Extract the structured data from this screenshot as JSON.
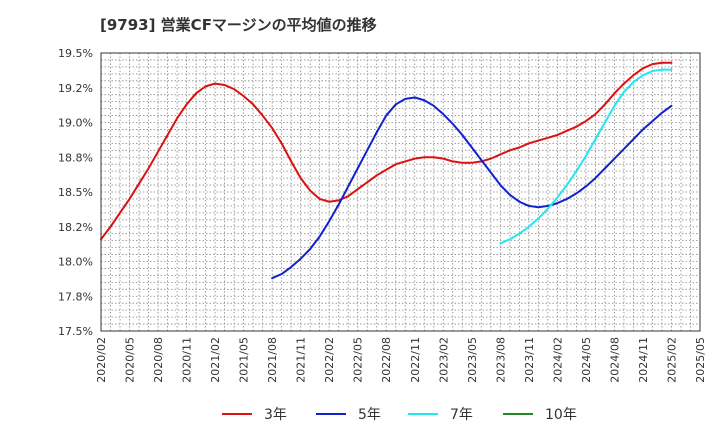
{
  "chart_data": {
    "type": "line",
    "title": "[9793]  営業CFマージンの平均値の推移",
    "xlabel": "",
    "ylabel": "",
    "x_ticks": [
      "2020/02",
      "2020/05",
      "2020/08",
      "2020/11",
      "2021/02",
      "2021/05",
      "2021/08",
      "2021/11",
      "2022/02",
      "2022/05",
      "2022/08",
      "2022/11",
      "2023/02",
      "2023/05",
      "2023/08",
      "2023/11",
      "2024/02",
      "2024/05",
      "2024/08",
      "2024/11",
      "2025/02",
      "2025/05"
    ],
    "x_range": [
      "2020/02",
      "2025/05"
    ],
    "ylim": [
      17.5,
      19.5
    ],
    "y_ticks": [
      17.5,
      17.75,
      18.0,
      18.25,
      18.5,
      18.75,
      19.0,
      19.25,
      19.5
    ],
    "y_tick_labels": [
      "17.5%",
      "17.8%",
      "18.0%",
      "18.2%",
      "18.5%",
      "18.8%",
      "19.0%",
      "19.2%",
      "19.5%"
    ],
    "grid": true,
    "legend": "bottom",
    "series": [
      {
        "name": "3年",
        "color": "#dd1111",
        "points": [
          [
            "2020/02",
            18.16
          ],
          [
            "2020/03",
            18.25
          ],
          [
            "2020/04",
            18.35
          ],
          [
            "2020/05",
            18.45
          ],
          [
            "2020/06",
            18.56
          ],
          [
            "2020/07",
            18.67
          ],
          [
            "2020/08",
            18.79
          ],
          [
            "2020/09",
            18.91
          ],
          [
            "2020/10",
            19.03
          ],
          [
            "2020/11",
            19.13
          ],
          [
            "2020/12",
            19.21
          ],
          [
            "2021/01",
            19.26
          ],
          [
            "2021/02",
            19.28
          ],
          [
            "2021/03",
            19.27
          ],
          [
            "2021/04",
            19.24
          ],
          [
            "2021/05",
            19.19
          ],
          [
            "2021/06",
            19.13
          ],
          [
            "2021/07",
            19.05
          ],
          [
            "2021/08",
            18.96
          ],
          [
            "2021/09",
            18.85
          ],
          [
            "2021/10",
            18.72
          ],
          [
            "2021/11",
            18.6
          ],
          [
            "2021/12",
            18.51
          ],
          [
            "2022/01",
            18.45
          ],
          [
            "2022/02",
            18.43
          ],
          [
            "2022/03",
            18.44
          ],
          [
            "2022/04",
            18.47
          ],
          [
            "2022/05",
            18.52
          ],
          [
            "2022/06",
            18.57
          ],
          [
            "2022/07",
            18.62
          ],
          [
            "2022/08",
            18.66
          ],
          [
            "2022/09",
            18.7
          ],
          [
            "2022/10",
            18.72
          ],
          [
            "2022/11",
            18.74
          ],
          [
            "2022/12",
            18.75
          ],
          [
            "2023/01",
            18.75
          ],
          [
            "2023/02",
            18.74
          ],
          [
            "2023/03",
            18.72
          ],
          [
            "2023/04",
            18.71
          ],
          [
            "2023/05",
            18.71
          ],
          [
            "2023/06",
            18.72
          ],
          [
            "2023/07",
            18.74
          ],
          [
            "2023/08",
            18.77
          ],
          [
            "2023/09",
            18.8
          ],
          [
            "2023/10",
            18.82
          ],
          [
            "2023/11",
            18.85
          ],
          [
            "2023/12",
            18.87
          ],
          [
            "2024/01",
            18.89
          ],
          [
            "2024/02",
            18.91
          ],
          [
            "2024/03",
            18.94
          ],
          [
            "2024/04",
            18.97
          ],
          [
            "2024/05",
            19.01
          ],
          [
            "2024/06",
            19.06
          ],
          [
            "2024/07",
            19.13
          ],
          [
            "2024/08",
            19.21
          ],
          [
            "2024/09",
            19.28
          ],
          [
            "2024/10",
            19.34
          ],
          [
            "2024/11",
            19.39
          ],
          [
            "2024/12",
            19.42
          ],
          [
            "2025/01",
            19.43
          ],
          [
            "2025/02",
            19.43
          ]
        ]
      },
      {
        "name": "5年",
        "color": "#1122cc",
        "points": [
          [
            "2021/08",
            17.88
          ],
          [
            "2021/09",
            17.91
          ],
          [
            "2021/10",
            17.96
          ],
          [
            "2021/11",
            18.02
          ],
          [
            "2021/12",
            18.09
          ],
          [
            "2022/01",
            18.18
          ],
          [
            "2022/02",
            18.29
          ],
          [
            "2022/03",
            18.41
          ],
          [
            "2022/04",
            18.54
          ],
          [
            "2022/05",
            18.67
          ],
          [
            "2022/06",
            18.8
          ],
          [
            "2022/07",
            18.93
          ],
          [
            "2022/08",
            19.05
          ],
          [
            "2022/09",
            19.13
          ],
          [
            "2022/10",
            19.17
          ],
          [
            "2022/11",
            19.18
          ],
          [
            "2022/12",
            19.16
          ],
          [
            "2023/01",
            19.12
          ],
          [
            "2023/02",
            19.06
          ],
          [
            "2023/03",
            18.99
          ],
          [
            "2023/04",
            18.91
          ],
          [
            "2023/05",
            18.82
          ],
          [
            "2023/06",
            18.73
          ],
          [
            "2023/07",
            18.64
          ],
          [
            "2023/08",
            18.55
          ],
          [
            "2023/09",
            18.48
          ],
          [
            "2023/10",
            18.43
          ],
          [
            "2023/11",
            18.4
          ],
          [
            "2023/12",
            18.39
          ],
          [
            "2024/01",
            18.4
          ],
          [
            "2024/02",
            18.42
          ],
          [
            "2024/03",
            18.45
          ],
          [
            "2024/04",
            18.49
          ],
          [
            "2024/05",
            18.54
          ],
          [
            "2024/06",
            18.6
          ],
          [
            "2024/07",
            18.67
          ],
          [
            "2024/08",
            18.74
          ],
          [
            "2024/09",
            18.81
          ],
          [
            "2024/10",
            18.88
          ],
          [
            "2024/11",
            18.95
          ],
          [
            "2024/12",
            19.01
          ],
          [
            "2025/01",
            19.07
          ],
          [
            "2025/02",
            19.12
          ]
        ]
      },
      {
        "name": "7年",
        "color": "#22e6f0",
        "points": [
          [
            "2023/08",
            18.13
          ],
          [
            "2023/09",
            18.16
          ],
          [
            "2023/10",
            18.2
          ],
          [
            "2023/11",
            18.25
          ],
          [
            "2023/12",
            18.31
          ],
          [
            "2024/01",
            18.38
          ],
          [
            "2024/02",
            18.46
          ],
          [
            "2024/03",
            18.55
          ],
          [
            "2024/04",
            18.65
          ],
          [
            "2024/05",
            18.76
          ],
          [
            "2024/06",
            18.88
          ],
          [
            "2024/07",
            19.0
          ],
          [
            "2024/08",
            19.12
          ],
          [
            "2024/09",
            19.22
          ],
          [
            "2024/10",
            19.29
          ],
          [
            "2024/11",
            19.34
          ],
          [
            "2024/12",
            19.37
          ],
          [
            "2025/01",
            19.38
          ],
          [
            "2025/02",
            19.38
          ]
        ]
      },
      {
        "name": "10年",
        "color": "#228822",
        "points": []
      }
    ]
  }
}
